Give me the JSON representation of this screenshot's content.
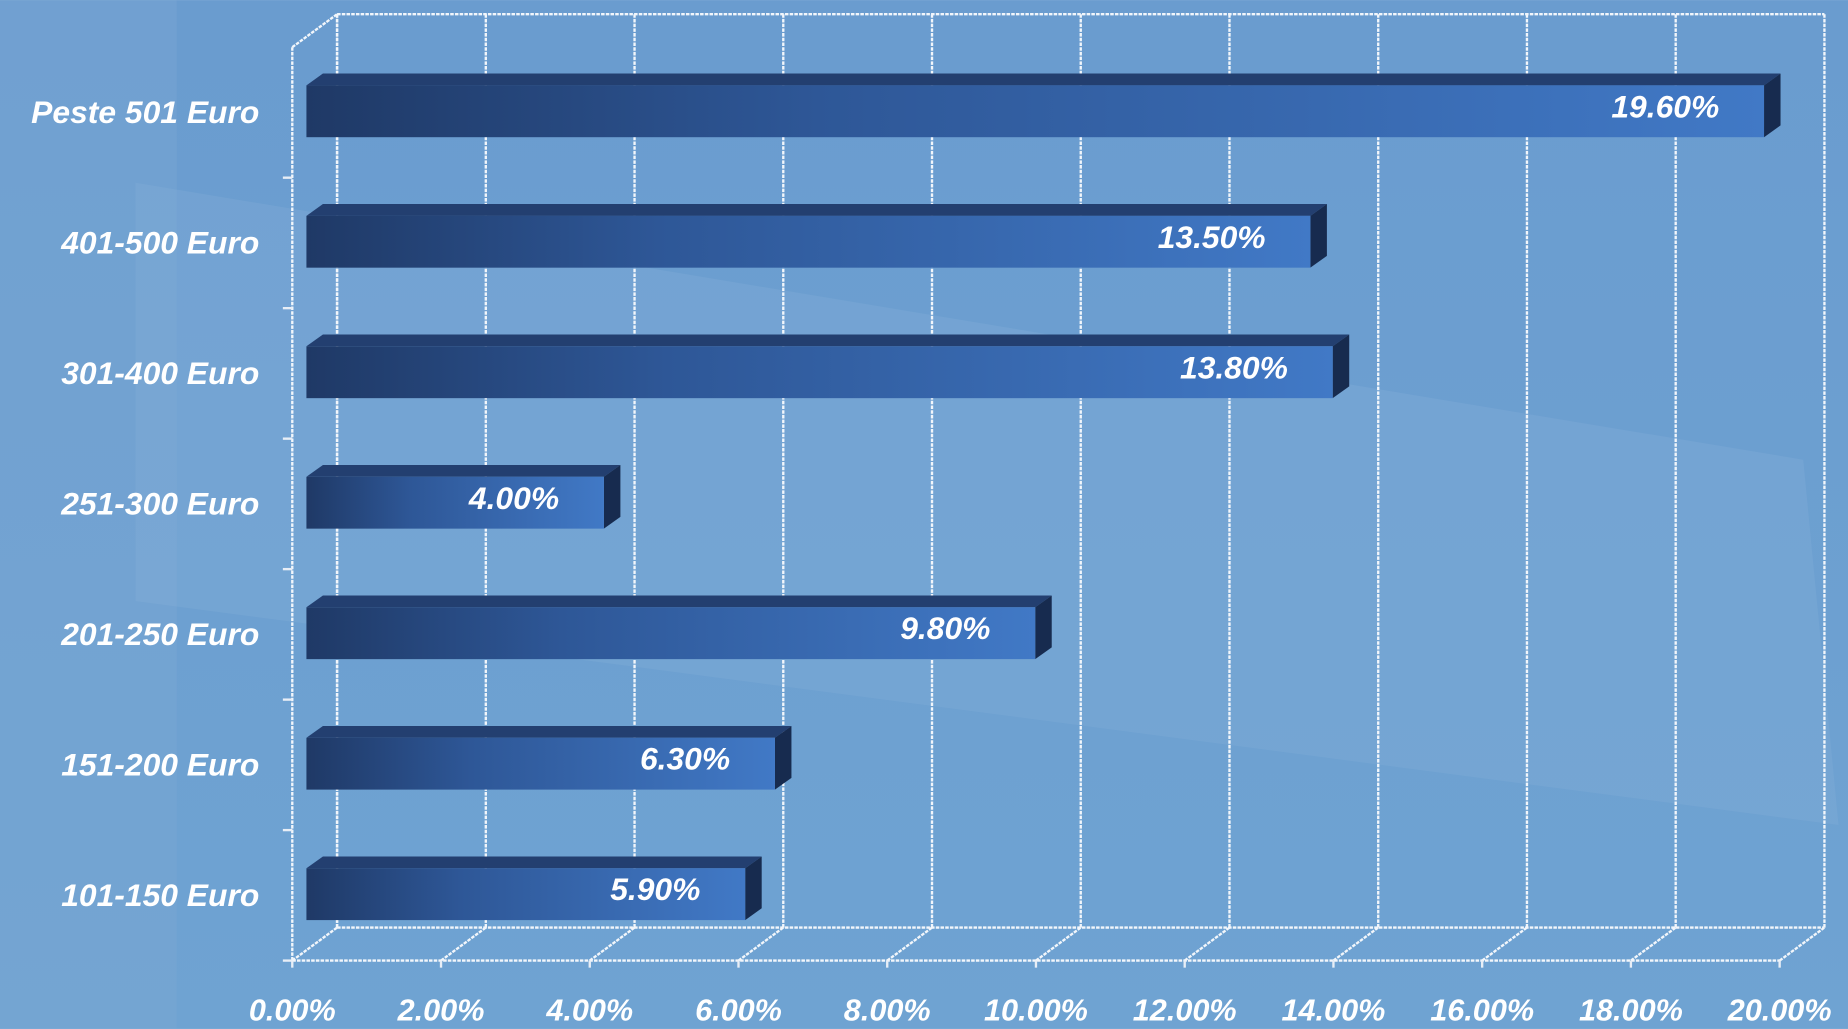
{
  "chart_data": {
    "type": "bar",
    "orientation": "horizontal",
    "categories": [
      "Peste 501 Euro",
      "401-500 Euro",
      "301-400 Euro",
      "251-300 Euro",
      "201-250 Euro",
      "151-200 Euro",
      "101-150 Euro"
    ],
    "values": [
      19.6,
      13.5,
      13.8,
      4.0,
      9.8,
      6.3,
      5.9
    ],
    "value_labels": [
      "19.60%",
      "13.50%",
      "13.80%",
      "4.00%",
      "9.80%",
      "6.30%",
      "5.90%"
    ],
    "color": "#3d73c0",
    "xlim": [
      0,
      20
    ],
    "xticks": [
      {
        "value": 0,
        "label": "0.00%"
      },
      {
        "value": 2,
        "label": "2.00%"
      },
      {
        "value": 4,
        "label": "4.00%"
      },
      {
        "value": 6,
        "label": "6.00%"
      },
      {
        "value": 8,
        "label": "8.00%"
      },
      {
        "value": 10,
        "label": "10.00%"
      },
      {
        "value": 12,
        "label": "12.00%"
      },
      {
        "value": 14,
        "label": "14.00%"
      },
      {
        "value": 16,
        "label": "16.00%"
      },
      {
        "value": 18,
        "label": "18.00%"
      },
      {
        "value": 20,
        "label": "20.00%"
      }
    ],
    "grid": true
  }
}
